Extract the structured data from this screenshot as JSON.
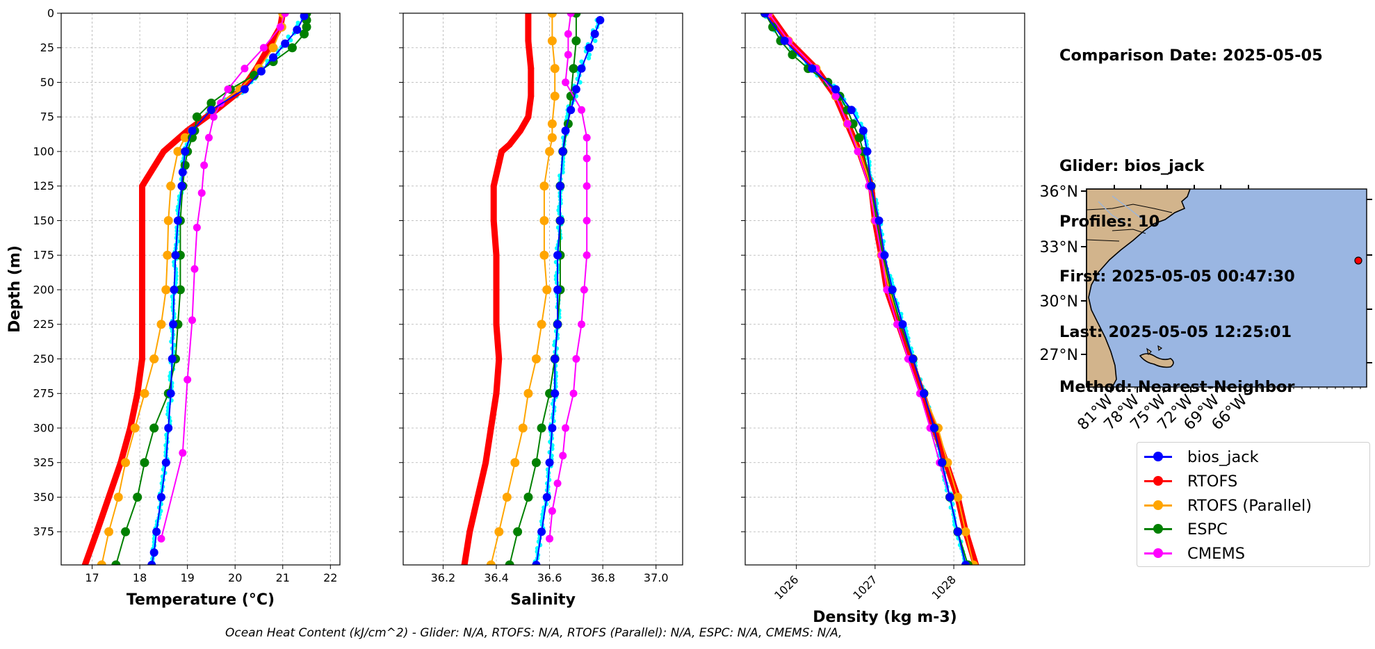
{
  "chart_data": [
    {
      "type": "line",
      "xlabel": "Temperature (°C)",
      "ylabel": "Depth (m)",
      "xlim": [
        16.35,
        22.2
      ],
      "ylim": [
        399,
        0
      ],
      "xticks": [
        "17",
        "18",
        "19",
        "20",
        "21",
        "22"
      ],
      "yticks": [
        "0",
        "25",
        "50",
        "75",
        "100",
        "125",
        "150",
        "175",
        "200",
        "225",
        "250",
        "275",
        "300",
        "325",
        "350",
        "375"
      ],
      "grid": true,
      "series": [
        {
          "name": "bios_jack",
          "depth": [
            2,
            12,
            22,
            32,
            42,
            55,
            70,
            85,
            100,
            115,
            125,
            150,
            175,
            200,
            225,
            250,
            275,
            300,
            325,
            350,
            375,
            390,
            399
          ],
          "values": [
            21.45,
            21.3,
            21.05,
            20.8,
            20.55,
            20.2,
            19.5,
            19.1,
            18.95,
            18.9,
            18.88,
            18.8,
            18.75,
            18.72,
            18.7,
            18.68,
            18.65,
            18.6,
            18.55,
            18.45,
            18.35,
            18.3,
            18.25
          ]
        },
        {
          "name": "RTOFS",
          "depth": [
            0,
            10,
            25,
            40,
            55,
            70,
            85,
            100,
            125,
            150,
            175,
            200,
            225,
            250,
            275,
            300,
            325,
            350,
            375,
            399
          ],
          "values": [
            21.0,
            20.95,
            20.7,
            20.45,
            20.15,
            19.6,
            19.0,
            18.5,
            18.05,
            18.05,
            18.05,
            18.05,
            18.05,
            18.05,
            17.95,
            17.8,
            17.6,
            17.35,
            17.1,
            16.85
          ]
        },
        {
          "name": "RTOFS (Parallel)",
          "depth": [
            0,
            10,
            25,
            40,
            55,
            70,
            85,
            90,
            100,
            125,
            150,
            175,
            200,
            225,
            250,
            275,
            300,
            325,
            350,
            375,
            399
          ],
          "values": [
            21.0,
            20.98,
            20.8,
            20.5,
            20.1,
            19.5,
            19.1,
            18.95,
            18.8,
            18.65,
            18.6,
            18.58,
            18.55,
            18.45,
            18.3,
            18.1,
            17.9,
            17.7,
            17.55,
            17.35,
            17.2
          ]
        },
        {
          "name": "ESPC",
          "depth": [
            0,
            5,
            10,
            15,
            25,
            35,
            45,
            55,
            65,
            75,
            85,
            90,
            100,
            110,
            125,
            150,
            175,
            200,
            225,
            250,
            275,
            300,
            325,
            350,
            375,
            399
          ],
          "values": [
            21.5,
            21.5,
            21.5,
            21.45,
            21.2,
            20.8,
            20.4,
            19.9,
            19.5,
            19.2,
            19.15,
            19.1,
            19.0,
            18.95,
            18.9,
            18.85,
            18.85,
            18.85,
            18.8,
            18.75,
            18.6,
            18.3,
            18.1,
            17.95,
            17.7,
            17.5
          ]
        },
        {
          "name": "CMEMS",
          "depth": [
            0,
            10,
            25,
            40,
            55,
            65,
            75,
            90,
            110,
            130,
            155,
            185,
            222,
            265,
            318,
            380
          ],
          "values": [
            21.05,
            20.95,
            20.6,
            20.2,
            19.85,
            19.7,
            19.55,
            19.45,
            19.35,
            19.3,
            19.2,
            19.15,
            19.1,
            19.0,
            18.9,
            18.45
          ]
        }
      ]
    },
    {
      "type": "line",
      "xlabel": "Salinity",
      "ylabel": "",
      "xlim": [
        36.05,
        37.1
      ],
      "ylim": [
        399,
        0
      ],
      "xticks": [
        "36.2",
        "36.4",
        "36.6",
        "36.8",
        "37.0"
      ],
      "grid": true,
      "series": [
        {
          "name": "bios_jack",
          "depth": [
            5,
            15,
            25,
            40,
            55,
            70,
            85,
            100,
            125,
            150,
            175,
            200,
            225,
            250,
            275,
            300,
            325,
            350,
            375,
            399
          ],
          "values": [
            36.79,
            36.77,
            36.75,
            36.72,
            36.7,
            36.68,
            36.66,
            36.65,
            36.64,
            36.64,
            36.63,
            36.63,
            36.63,
            36.62,
            36.62,
            36.61,
            36.6,
            36.59,
            36.57,
            36.55
          ]
        },
        {
          "name": "RTOFS",
          "depth": [
            0,
            20,
            40,
            60,
            75,
            85,
            95,
            100,
            125,
            150,
            175,
            200,
            225,
            250,
            275,
            300,
            325,
            350,
            375,
            399
          ],
          "values": [
            36.52,
            36.52,
            36.53,
            36.53,
            36.52,
            36.49,
            36.45,
            36.42,
            36.39,
            36.39,
            36.4,
            36.4,
            36.4,
            36.41,
            36.4,
            36.38,
            36.36,
            36.33,
            36.3,
            36.28
          ]
        },
        {
          "name": "RTOFS (Parallel)",
          "depth": [
            0,
            20,
            40,
            60,
            80,
            90,
            100,
            125,
            150,
            175,
            200,
            225,
            250,
            275,
            300,
            325,
            350,
            375,
            399
          ],
          "values": [
            36.61,
            36.61,
            36.62,
            36.62,
            36.61,
            36.61,
            36.6,
            36.58,
            36.58,
            36.58,
            36.59,
            36.57,
            36.55,
            36.52,
            36.5,
            36.47,
            36.44,
            36.41,
            36.38
          ]
        },
        {
          "name": "ESPC",
          "depth": [
            0,
            20,
            40,
            60,
            80,
            100,
            125,
            150,
            175,
            200,
            225,
            250,
            275,
            300,
            325,
            350,
            375,
            399
          ],
          "values": [
            36.7,
            36.7,
            36.69,
            36.68,
            36.67,
            36.65,
            36.64,
            36.64,
            36.64,
            36.64,
            36.63,
            36.62,
            36.6,
            36.57,
            36.55,
            36.52,
            36.48,
            36.45
          ]
        },
        {
          "name": "CMEMS",
          "depth": [
            0,
            15,
            30,
            50,
            70,
            90,
            105,
            125,
            150,
            175,
            200,
            225,
            250,
            275,
            300,
            320,
            340,
            360,
            380
          ],
          "values": [
            36.68,
            36.67,
            36.67,
            36.66,
            36.72,
            36.74,
            36.74,
            36.74,
            36.74,
            36.74,
            36.73,
            36.72,
            36.7,
            36.69,
            36.66,
            36.65,
            36.63,
            36.61,
            36.6
          ]
        }
      ]
    },
    {
      "type": "line",
      "xlabel": "Density (kg m-3)",
      "ylabel": "",
      "xlim": [
        1025.35,
        1028.9
      ],
      "ylim": [
        399,
        0
      ],
      "xticks": [
        "1026",
        "1027",
        "1028"
      ],
      "grid": true,
      "series": [
        {
          "name": "bios_jack",
          "depth": [
            0,
            20,
            40,
            55,
            70,
            85,
            100,
            125,
            150,
            175,
            200,
            225,
            250,
            275,
            300,
            325,
            350,
            375,
            399
          ],
          "values": [
            1025.6,
            1025.85,
            1026.2,
            1026.5,
            1026.7,
            1026.85,
            1026.9,
            1026.95,
            1027.05,
            1027.12,
            1027.22,
            1027.35,
            1027.48,
            1027.62,
            1027.75,
            1027.85,
            1027.95,
            1028.05,
            1028.15
          ]
        },
        {
          "name": "RTOFS",
          "depth": [
            0,
            20,
            40,
            60,
            80,
            100,
            125,
            150,
            175,
            200,
            225,
            250,
            275,
            300,
            325,
            350,
            375,
            399
          ],
          "values": [
            1025.65,
            1025.9,
            1026.25,
            1026.5,
            1026.65,
            1026.8,
            1026.95,
            1027.0,
            1027.08,
            1027.15,
            1027.3,
            1027.45,
            1027.6,
            1027.75,
            1027.9,
            1028.05,
            1028.15,
            1028.28
          ]
        },
        {
          "name": "RTOFS (Parallel)",
          "depth": [
            0,
            20,
            40,
            60,
            80,
            100,
            125,
            150,
            175,
            200,
            225,
            250,
            275,
            300,
            325,
            350,
            375,
            399
          ],
          "values": [
            1025.65,
            1025.9,
            1026.25,
            1026.5,
            1026.65,
            1026.8,
            1026.95,
            1027.0,
            1027.08,
            1027.18,
            1027.32,
            1027.48,
            1027.62,
            1027.8,
            1027.92,
            1028.05,
            1028.15,
            1028.25
          ]
        },
        {
          "name": "ESPC",
          "depth": [
            0,
            10,
            20,
            30,
            40,
            50,
            60,
            70,
            80,
            90,
            100,
            125,
            150,
            175,
            200,
            225,
            250,
            275,
            300,
            325,
            350,
            375,
            399
          ],
          "values": [
            1025.6,
            1025.7,
            1025.8,
            1025.95,
            1026.15,
            1026.4,
            1026.55,
            1026.65,
            1026.72,
            1026.8,
            1026.85,
            1026.95,
            1027.02,
            1027.1,
            1027.2,
            1027.32,
            1027.48,
            1027.62,
            1027.75,
            1027.85,
            1027.95,
            1028.05,
            1028.18
          ]
        },
        {
          "name": "CMEMS",
          "depth": [
            0,
            20,
            40,
            60,
            80,
            100,
            125,
            150,
            175,
            200,
            225,
            250,
            275,
            300,
            325,
            350,
            375
          ],
          "values": [
            1025.65,
            1025.9,
            1026.25,
            1026.5,
            1026.65,
            1026.78,
            1026.92,
            1027.0,
            1027.08,
            1027.15,
            1027.28,
            1027.42,
            1027.57,
            1027.7,
            1027.82,
            1027.95,
            1028.05
          ]
        }
      ]
    }
  ],
  "info": {
    "date_line": "Comparison Date: 2025-05-05",
    "glider_line": "Glider: bios_jack",
    "profiles_line": "Profiles: 10",
    "first_line": "First: 2025-05-05 00:47:30",
    "last_line": "Last: 2025-05-05 12:25:01",
    "method_line": "Method: Nearest-Neighbor"
  },
  "map": {
    "lat_labels": [
      "36°N",
      "33°N",
      "30°N",
      "27°N"
    ],
    "lon_labels": [
      "81°W",
      "78°W",
      "75°W",
      "72°W",
      "69°W",
      "66°W"
    ],
    "land_color": "#d2b48c",
    "ocean_color": "#9ab6e2"
  },
  "legend": [
    {
      "label": "bios_jack",
      "color": "#0000ff"
    },
    {
      "label": "RTOFS",
      "color": "#ff0000"
    },
    {
      "label": "RTOFS (Parallel)",
      "color": "#ffa500"
    },
    {
      "label": "ESPC",
      "color": "#008000"
    },
    {
      "label": "CMEMS",
      "color": "#ff00ff"
    }
  ],
  "footer": "Ocean Heat Content (kJ/cm^2) - Glider: N/A,  RTOFS: N/A,  RTOFS (Parallel): N/A,  ESPC: N/A,  CMEMS: N/A,",
  "colors": {
    "bios_jack": "#0000ff",
    "glider_raw": "#00ffff",
    "RTOFS": "#ff0000",
    "RTOFS (Parallel)": "#ffa500",
    "ESPC": "#008000",
    "CMEMS": "#ff00ff"
  }
}
